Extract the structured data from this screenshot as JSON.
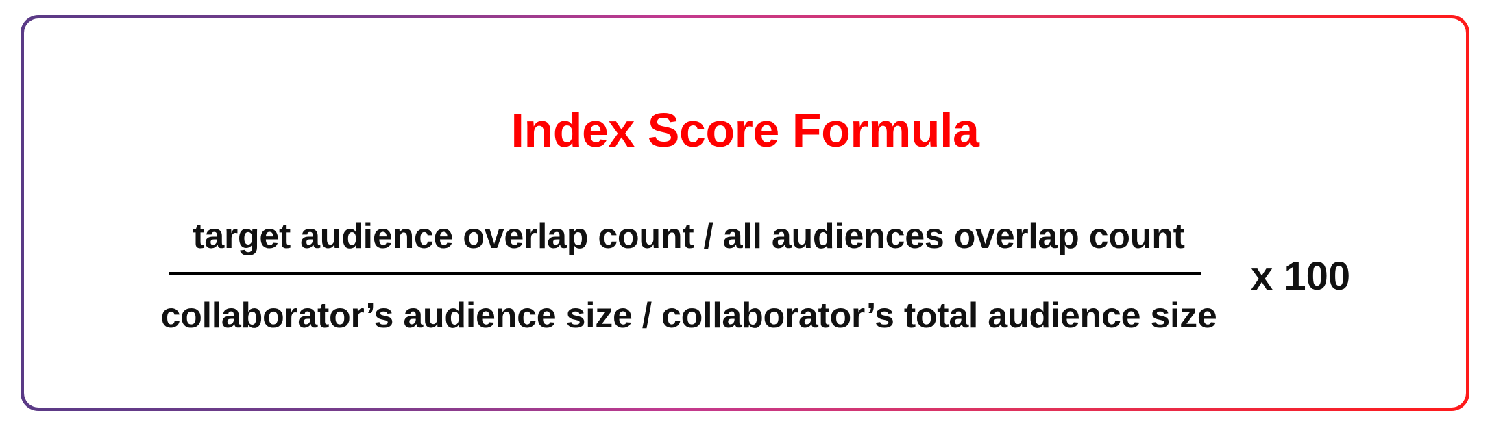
{
  "title": "Index Score Formula",
  "formula": {
    "numerator": "target audience overlap count / all audiences overlap count",
    "denominator": "collaborator’s audience size / collaborator’s total audience size",
    "multiplier": "x 100"
  },
  "colors": {
    "title": "#ff0000",
    "text": "#111111",
    "border_gradient_start": "#5a3a86",
    "border_gradient_end": "#ff1a1a"
  }
}
